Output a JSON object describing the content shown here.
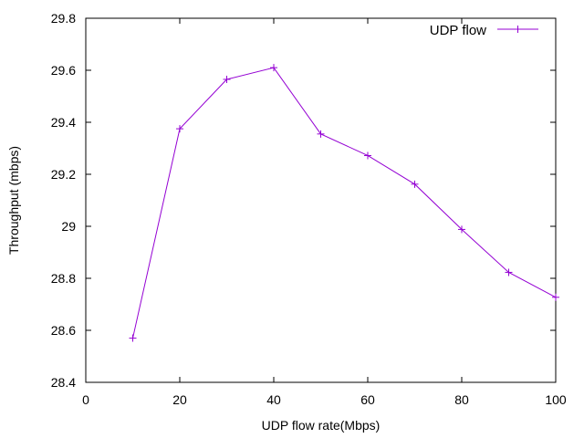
{
  "chart_data": {
    "type": "line",
    "title": "",
    "xlabel": "UDP flow rate(Mbps)",
    "ylabel": "Throughput (mbps)",
    "xlim": [
      0,
      100
    ],
    "ylim": [
      28.4,
      29.8
    ],
    "x_ticks": [
      0,
      20,
      40,
      60,
      80,
      100
    ],
    "x_tick_labels": [
      "0",
      "20",
      "40",
      "60",
      "80",
      "100"
    ],
    "y_ticks": [
      28.4,
      28.6,
      28.8,
      29.0,
      29.2,
      29.4,
      29.6,
      29.8
    ],
    "y_tick_labels": [
      "28.4",
      "28.6",
      "28.8",
      "29",
      "29.2",
      "29.4",
      "29.6",
      "29.8"
    ],
    "grid": false,
    "legend_position": "top-right",
    "series": [
      {
        "name": "UDP flow",
        "color": "#9400d3",
        "marker": "plus",
        "x": [
          10,
          20,
          30,
          40,
          50,
          60,
          70,
          80,
          90,
          100
        ],
        "y": [
          28.57,
          29.375,
          29.565,
          29.61,
          29.355,
          29.272,
          29.162,
          28.988,
          28.823,
          28.727
        ]
      }
    ]
  }
}
